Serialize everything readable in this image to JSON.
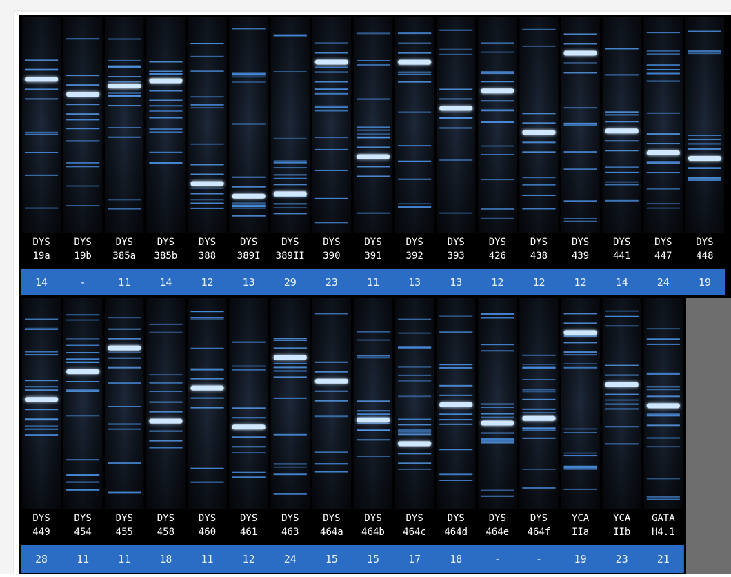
{
  "rows": [
    {
      "markers": [
        {
          "label": [
            "DYS",
            "19a"
          ],
          "value": 14
        },
        {
          "label": [
            "DYS",
            "19b"
          ],
          "value": "-"
        },
        {
          "label": [
            "DYS",
            "385a"
          ],
          "value": 11
        },
        {
          "label": [
            "DYS",
            "385b"
          ],
          "value": 14
        },
        {
          "label": [
            "DYS",
            "388"
          ],
          "value": 12
        },
        {
          "label": [
            "DYS",
            "389I"
          ],
          "value": 13
        },
        {
          "label": [
            "DYS",
            "389II"
          ],
          "value": 29
        },
        {
          "label": [
            "DYS",
            "390"
          ],
          "value": 23
        },
        {
          "label": [
            "DYS",
            "391"
          ],
          "value": 11
        },
        {
          "label": [
            "DYS",
            "392"
          ],
          "value": 13
        },
        {
          "label": [
            "DYS",
            "393"
          ],
          "value": 13
        },
        {
          "label": [
            "DYS",
            "426"
          ],
          "value": 12
        },
        {
          "label": [
            "DYS",
            "438"
          ],
          "value": 12
        },
        {
          "label": [
            "DYS",
            "439"
          ],
          "value": 12
        },
        {
          "label": [
            "DYS",
            "441"
          ],
          "value": 14
        },
        {
          "label": [
            "DYS",
            "447"
          ],
          "value": 24
        },
        {
          "label": [
            "DYS",
            "448"
          ],
          "value": 19
        }
      ]
    },
    {
      "markers": [
        {
          "label": [
            "DYS",
            "449"
          ],
          "value": 28
        },
        {
          "label": [
            "DYS",
            "454"
          ],
          "value": 11
        },
        {
          "label": [
            "DYS",
            "455"
          ],
          "value": 11
        },
        {
          "label": [
            "DYS",
            "458"
          ],
          "value": 18
        },
        {
          "label": [
            "DYS",
            "460"
          ],
          "value": 11
        },
        {
          "label": [
            "DYS",
            "461"
          ],
          "value": 12
        },
        {
          "label": [
            "DYS",
            "463"
          ],
          "value": 24
        },
        {
          "label": [
            "DYS",
            "464a"
          ],
          "value": 15
        },
        {
          "label": [
            "DYS",
            "464b"
          ],
          "value": 15
        },
        {
          "label": [
            "DYS",
            "464c"
          ],
          "value": 17
        },
        {
          "label": [
            "DYS",
            "464d"
          ],
          "value": 18
        },
        {
          "label": [
            "DYS",
            "464e"
          ],
          "value": "-"
        },
        {
          "label": [
            "DYS",
            "464f"
          ],
          "value": "-"
        },
        {
          "label": [
            "YCA",
            "IIa"
          ],
          "value": 19
        },
        {
          "label": [
            "YCA",
            "IIb"
          ],
          "value": 23
        },
        {
          "label": [
            "GATA",
            "H4.1"
          ],
          "value": 21
        }
      ]
    }
  ]
}
